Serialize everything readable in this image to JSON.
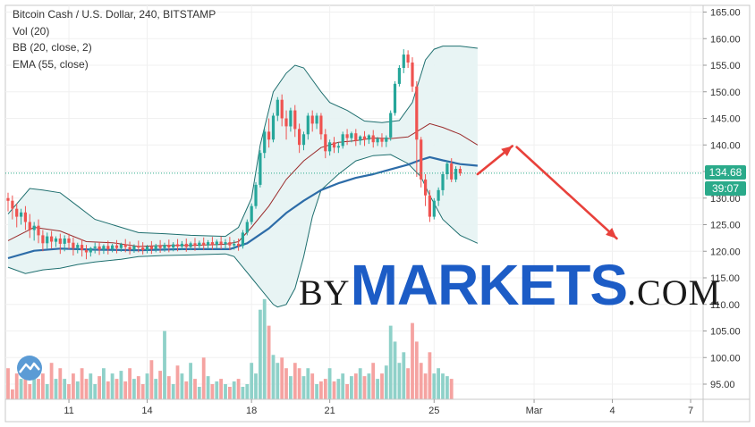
{
  "legend": {
    "line1": "Bitcoin Cash / U.S. Dollar, 240, BITSTAMP",
    "line2": "Vol (20)",
    "line3": "BB (20, close, 2)",
    "line4": "EMA (55, close)"
  },
  "watermark": {
    "by": "BY",
    "markets": "MARKETS",
    "com": ".COM"
  },
  "last_price_label": "134.68",
  "countdown_label": "39:07",
  "colors": {
    "up": "#26a69a",
    "down": "#ef5350",
    "ema": "#2d6ca8",
    "bb_fill": "#e6f3f3",
    "arrow": "#e8413b"
  },
  "chart_data": {
    "type": "candlestick",
    "title": "Bitcoin Cash / U.S. Dollar, 240, BITSTAMP",
    "indicators": [
      "Vol (20)",
      "BB (20, close, 2)",
      "EMA (55, close)"
    ],
    "y_ticks": [
      165,
      160,
      155,
      150,
      145,
      140,
      135,
      130,
      125,
      120,
      115,
      110,
      105,
      100,
      95
    ],
    "ylim": [
      92.5,
      166
    ],
    "x_ticks": [
      {
        "label": "11",
        "bar": 14
      },
      {
        "label": "14",
        "bar": 32
      },
      {
        "label": "18",
        "bar": 56
      },
      {
        "label": "21",
        "bar": 74
      },
      {
        "label": "25",
        "bar": 98
      },
      {
        "label": "Mar",
        "bar": 121
      },
      {
        "label": "4",
        "bar": 139
      },
      {
        "label": "7",
        "bar": 157
      }
    ],
    "last_price": 134.68,
    "candles": [
      {
        "o": 130,
        "h": 131,
        "c": 129.5,
        "l": 127.5
      },
      {
        "o": 129.5,
        "h": 130.5,
        "c": 128,
        "l": 126
      },
      {
        "o": 128,
        "h": 129,
        "c": 126.5,
        "l": 124.5
      },
      {
        "o": 126.5,
        "h": 128,
        "c": 127.3,
        "l": 125
      },
      {
        "o": 127.3,
        "h": 128.5,
        "c": 125.5,
        "l": 124
      },
      {
        "o": 125.5,
        "h": 127,
        "c": 124,
        "l": 122.5
      },
      {
        "o": 124,
        "h": 125.5,
        "c": 124.8,
        "l": 122
      },
      {
        "o": 124.8,
        "h": 126,
        "c": 123,
        "l": 121.5
      },
      {
        "o": 123,
        "h": 124,
        "c": 121.5,
        "l": 120
      },
      {
        "o": 121.5,
        "h": 123.5,
        "c": 122.8,
        "l": 120.5
      },
      {
        "o": 122.8,
        "h": 123.8,
        "c": 121.8,
        "l": 120.5
      },
      {
        "o": 121.8,
        "h": 122.8,
        "c": 122.4,
        "l": 120.8
      },
      {
        "o": 122.4,
        "h": 123.3,
        "c": 121.4,
        "l": 119.5
      },
      {
        "o": 121.4,
        "h": 123,
        "c": 122.4,
        "l": 120
      },
      {
        "o": 122.4,
        "h": 123.3,
        "c": 121.6,
        "l": 120.4
      },
      {
        "o": 121.6,
        "h": 122.6,
        "c": 120.6,
        "l": 119.2
      },
      {
        "o": 120.6,
        "h": 121.6,
        "c": 121.2,
        "l": 119.6
      },
      {
        "o": 121.2,
        "h": 122.2,
        "c": 120.2,
        "l": 119
      },
      {
        "o": 120.2,
        "h": 121.2,
        "c": 119.8,
        "l": 118.5
      },
      {
        "o": 119.8,
        "h": 120.8,
        "c": 120.6,
        "l": 119
      },
      {
        "o": 120.6,
        "h": 121.6,
        "c": 120.9,
        "l": 119.6
      },
      {
        "o": 120.9,
        "h": 121.8,
        "c": 120.3,
        "l": 119.3
      },
      {
        "o": 120.3,
        "h": 121.3,
        "c": 121,
        "l": 119.5
      },
      {
        "o": 121,
        "h": 122,
        "c": 120.4,
        "l": 119.4
      },
      {
        "o": 120.4,
        "h": 121.4,
        "c": 121.1,
        "l": 119.8
      },
      {
        "o": 121.1,
        "h": 122.1,
        "c": 120.6,
        "l": 119.6
      },
      {
        "o": 120.6,
        "h": 121.6,
        "c": 121.3,
        "l": 119.9
      },
      {
        "o": 121.3,
        "h": 122.3,
        "c": 120.8,
        "l": 119.8
      },
      {
        "o": 120.8,
        "h": 121.8,
        "c": 120.3,
        "l": 119.4
      },
      {
        "o": 120.3,
        "h": 121.3,
        "c": 121,
        "l": 119.7
      },
      {
        "o": 121,
        "h": 122,
        "c": 120.7,
        "l": 119.8
      },
      {
        "o": 120.7,
        "h": 121.7,
        "c": 120.2,
        "l": 119.4
      },
      {
        "o": 120.2,
        "h": 121.2,
        "c": 120.9,
        "l": 119.6
      },
      {
        "o": 120.9,
        "h": 121.9,
        "c": 120.4,
        "l": 119.5
      },
      {
        "o": 120.4,
        "h": 121.4,
        "c": 121.1,
        "l": 119.8
      },
      {
        "o": 121.1,
        "h": 122.1,
        "c": 120.6,
        "l": 119.7
      },
      {
        "o": 120.6,
        "h": 121.6,
        "c": 121.2,
        "l": 119.9
      },
      {
        "o": 121.2,
        "h": 122.2,
        "c": 120.7,
        "l": 119.8
      },
      {
        "o": 120.7,
        "h": 121.7,
        "c": 121.3,
        "l": 120
      },
      {
        "o": 121.3,
        "h": 122.3,
        "c": 120.9,
        "l": 120
      },
      {
        "o": 120.9,
        "h": 121.9,
        "c": 121.4,
        "l": 120.2
      },
      {
        "o": 121.4,
        "h": 122.4,
        "c": 120.8,
        "l": 119.9
      },
      {
        "o": 120.8,
        "h": 121.8,
        "c": 121.5,
        "l": 120.2
      },
      {
        "o": 121.5,
        "h": 122.5,
        "c": 121,
        "l": 120.1
      },
      {
        "o": 121,
        "h": 122,
        "c": 121.6,
        "l": 120.3
      },
      {
        "o": 121.6,
        "h": 122.6,
        "c": 121.1,
        "l": 120.2
      },
      {
        "o": 121.1,
        "h": 122.1,
        "c": 121.7,
        "l": 120.4
      },
      {
        "o": 121.7,
        "h": 122.7,
        "c": 121.2,
        "l": 120.3
      },
      {
        "o": 121.2,
        "h": 122.2,
        "c": 121.8,
        "l": 120.5
      },
      {
        "o": 121.8,
        "h": 122.8,
        "c": 121.3,
        "l": 120.4
      },
      {
        "o": 121.3,
        "h": 122.3,
        "c": 121.7,
        "l": 120.4
      },
      {
        "o": 121.7,
        "h": 122.7,
        "c": 121.1,
        "l": 120.2
      },
      {
        "o": 121.1,
        "h": 122.1,
        "c": 121.4,
        "l": 120.3
      },
      {
        "o": 121.4,
        "h": 122.4,
        "c": 121,
        "l": 120.1
      },
      {
        "o": 121,
        "h": 124,
        "c": 123.5,
        "l": 120.5
      },
      {
        "o": 123.5,
        "h": 126,
        "c": 125.5,
        "l": 123
      },
      {
        "o": 125.5,
        "h": 129,
        "c": 128.5,
        "l": 125
      },
      {
        "o": 128.5,
        "h": 133,
        "c": 132.5,
        "l": 128
      },
      {
        "o": 132.5,
        "h": 139,
        "c": 138.5,
        "l": 132
      },
      {
        "o": 138.5,
        "h": 143,
        "c": 142.5,
        "l": 137.5
      },
      {
        "o": 142.5,
        "h": 145,
        "c": 141,
        "l": 139.5
      },
      {
        "o": 141,
        "h": 146,
        "c": 145.5,
        "l": 140.5
      },
      {
        "o": 145.5,
        "h": 149,
        "c": 148.5,
        "l": 144.5
      },
      {
        "o": 148.5,
        "h": 149.5,
        "c": 145,
        "l": 143.5
      },
      {
        "o": 145,
        "h": 146.5,
        "c": 143.5,
        "l": 141
      },
      {
        "o": 143.5,
        "h": 147,
        "c": 146.5,
        "l": 142.5
      },
      {
        "o": 146.5,
        "h": 147.5,
        "c": 143,
        "l": 141.5
      },
      {
        "o": 143,
        "h": 144,
        "c": 140,
        "l": 138.5
      },
      {
        "o": 140,
        "h": 142.5,
        "c": 142,
        "l": 139
      },
      {
        "o": 142,
        "h": 146,
        "c": 145.5,
        "l": 141
      },
      {
        "o": 145.5,
        "h": 146.5,
        "c": 144,
        "l": 142.5
      },
      {
        "o": 144,
        "h": 146,
        "c": 145.5,
        "l": 143
      },
      {
        "o": 145.5,
        "h": 146,
        "c": 142,
        "l": 141
      },
      {
        "o": 142,
        "h": 143,
        "c": 138.8,
        "l": 137.5
      },
      {
        "o": 138.8,
        "h": 141,
        "c": 140.5,
        "l": 138
      },
      {
        "o": 140.5,
        "h": 141.5,
        "c": 139.5,
        "l": 138.5
      },
      {
        "o": 139.5,
        "h": 140.5,
        "c": 139.8,
        "l": 138.5
      },
      {
        "o": 139.8,
        "h": 142.5,
        "c": 142,
        "l": 139.3
      },
      {
        "o": 142,
        "h": 143,
        "c": 141.3,
        "l": 140
      },
      {
        "o": 141.3,
        "h": 142.5,
        "c": 142.2,
        "l": 140.5
      },
      {
        "o": 142.2,
        "h": 143,
        "c": 140.8,
        "l": 139.8
      },
      {
        "o": 140.8,
        "h": 141.8,
        "c": 141.6,
        "l": 140
      },
      {
        "o": 141.6,
        "h": 142.6,
        "c": 141,
        "l": 139.8
      },
      {
        "o": 141,
        "h": 142,
        "c": 141.8,
        "l": 140.2
      },
      {
        "o": 141.8,
        "h": 142.8,
        "c": 140.5,
        "l": 139.5
      },
      {
        "o": 140.5,
        "h": 141.5,
        "c": 141.2,
        "l": 139.8
      },
      {
        "o": 141.2,
        "h": 142.2,
        "c": 140.6,
        "l": 139.6
      },
      {
        "o": 140.6,
        "h": 141.8,
        "c": 141.4,
        "l": 139.6
      },
      {
        "o": 141.4,
        "h": 146.5,
        "c": 146,
        "l": 140.8
      },
      {
        "o": 146,
        "h": 152,
        "c": 151.5,
        "l": 145.5
      },
      {
        "o": 151.5,
        "h": 155,
        "c": 154.5,
        "l": 151
      },
      {
        "o": 154.5,
        "h": 158,
        "c": 157,
        "l": 153.5
      },
      {
        "o": 157,
        "h": 157.8,
        "c": 155.5,
        "l": 154.5
      },
      {
        "o": 155.5,
        "h": 156.5,
        "c": 151,
        "l": 150
      },
      {
        "o": 151,
        "h": 152,
        "c": 141,
        "l": 134
      },
      {
        "o": 141,
        "h": 141.5,
        "c": 133.5,
        "l": 132
      },
      {
        "o": 133.5,
        "h": 134.5,
        "c": 130.5,
        "l": 128.5
      },
      {
        "o": 130.5,
        "h": 131.5,
        "c": 126.5,
        "l": 125.5
      },
      {
        "o": 126.5,
        "h": 130,
        "c": 129.5,
        "l": 126
      },
      {
        "o": 129.5,
        "h": 132,
        "c": 131.5,
        "l": 128.5
      },
      {
        "o": 131.5,
        "h": 135,
        "c": 134.5,
        "l": 130.5
      },
      {
        "o": 134.5,
        "h": 137,
        "c": 136.5,
        "l": 133.5
      },
      {
        "o": 136.5,
        "h": 137.5,
        "c": 133.5,
        "l": 133
      },
      {
        "o": 133.5,
        "h": 136,
        "c": 135.5,
        "l": 133
      },
      {
        "o": 135.5,
        "h": 136,
        "c": 134.68,
        "l": 134.2
      }
    ],
    "volumes": [
      98,
      94,
      97,
      96,
      99,
      95,
      98,
      96,
      97,
      95,
      99,
      96,
      98,
      96,
      95,
      97,
      95.5,
      98,
      96,
      97,
      95,
      96.5,
      98,
      95.5,
      97,
      96,
      97.5,
      95.5,
      98,
      96,
      96.5,
      95,
      97,
      99.5,
      96,
      97.5,
      105,
      96.5,
      95,
      98.5,
      97,
      95.5,
      99,
      96,
      94.5,
      100,
      96.5,
      95,
      95.5,
      96,
      95,
      94.5,
      95.5,
      96,
      94.5,
      95,
      99,
      97,
      109,
      111,
      106,
      100.5,
      99,
      100,
      98,
      96.5,
      99,
      98,
      96.5,
      98,
      97,
      95,
      95.5,
      96,
      98,
      95.5,
      96,
      97,
      95,
      96.5,
      97,
      98,
      96.5,
      97,
      99,
      96,
      97,
      98.5,
      106,
      103,
      99,
      101,
      98,
      106.5,
      103,
      99,
      97,
      101,
      97,
      98,
      97,
      96.5,
      96
    ],
    "ema55": [
      [
        0,
        118.7
      ],
      [
        6,
        120.1
      ],
      [
        12,
        120.5
      ],
      [
        20,
        120.3
      ],
      [
        30,
        120.2
      ],
      [
        40,
        120.4
      ],
      [
        51,
        120.4
      ],
      [
        55,
        121.5
      ],
      [
        60,
        124.3
      ],
      [
        64,
        127.2
      ],
      [
        68,
        129.5
      ],
      [
        72,
        131.5
      ],
      [
        76,
        132.8
      ],
      [
        80,
        133.8
      ],
      [
        84,
        134.5
      ],
      [
        88,
        135.4
      ],
      [
        92,
        136.3
      ],
      [
        95,
        137.2
      ],
      [
        97,
        137.7
      ],
      [
        100,
        137.1
      ],
      [
        104,
        136.4
      ],
      [
        108,
        136.1
      ]
    ],
    "bb_basis": [
      [
        0,
        122
      ],
      [
        6,
        124.5
      ],
      [
        12,
        123.8
      ],
      [
        18,
        121.8
      ],
      [
        24,
        121.6
      ],
      [
        30,
        120.9
      ],
      [
        36,
        121.1
      ],
      [
        42,
        121.1
      ],
      [
        50,
        121.3
      ],
      [
        53,
        121.8
      ],
      [
        56,
        124.5
      ],
      [
        60,
        128.5
      ],
      [
        64,
        133.5
      ],
      [
        68,
        137
      ],
      [
        72,
        139.5
      ],
      [
        76,
        140.5
      ],
      [
        80,
        140.8
      ],
      [
        84,
        141.3
      ],
      [
        88,
        141.2
      ],
      [
        92,
        141.5
      ],
      [
        95,
        143
      ],
      [
        97,
        144
      ],
      [
        100,
        143.3
      ],
      [
        104,
        142
      ],
      [
        108,
        140
      ]
    ],
    "bb_upper": [
      [
        0,
        127
      ],
      [
        5,
        131.8
      ],
      [
        8,
        131.5
      ],
      [
        12,
        131
      ],
      [
        16,
        128.5
      ],
      [
        20,
        126
      ],
      [
        26,
        124.5
      ],
      [
        30,
        123.5
      ],
      [
        36,
        123.3
      ],
      [
        42,
        123
      ],
      [
        50,
        122.8
      ],
      [
        53,
        124.5
      ],
      [
        56,
        130
      ],
      [
        58,
        140
      ],
      [
        61,
        150
      ],
      [
        64,
        153.5
      ],
      [
        66,
        155
      ],
      [
        68,
        154.5
      ],
      [
        72,
        150
      ],
      [
        74,
        148
      ],
      [
        78,
        146.5
      ],
      [
        82,
        144.5
      ],
      [
        86,
        144.2
      ],
      [
        90,
        144.6
      ],
      [
        93,
        148
      ],
      [
        96,
        156
      ],
      [
        98,
        158
      ],
      [
        100,
        158.6
      ],
      [
        104,
        158.6
      ],
      [
        108,
        158.2
      ]
    ],
    "bb_lower": [
      [
        0,
        117
      ],
      [
        4,
        115.8
      ],
      [
        8,
        116.5
      ],
      [
        12,
        116.8
      ],
      [
        16,
        117.5
      ],
      [
        20,
        118
      ],
      [
        26,
        118.5
      ],
      [
        30,
        119
      ],
      [
        36,
        119.2
      ],
      [
        42,
        119.3
      ],
      [
        50,
        119.5
      ],
      [
        52,
        119
      ],
      [
        54,
        117
      ],
      [
        56,
        115
      ],
      [
        58,
        113
      ],
      [
        61,
        110
      ],
      [
        62,
        109.5
      ],
      [
        64,
        110
      ],
      [
        66,
        113
      ],
      [
        68,
        119
      ],
      [
        70,
        126.5
      ],
      [
        72,
        131.5
      ],
      [
        76,
        134.5
      ],
      [
        80,
        137
      ],
      [
        84,
        138
      ],
      [
        88,
        138.2
      ],
      [
        92,
        136.5
      ],
      [
        95,
        134
      ],
      [
        97,
        130.5
      ],
      [
        100,
        126
      ],
      [
        104,
        123
      ],
      [
        108,
        121.5
      ]
    ],
    "arrows": [
      {
        "from": [
          108,
          134.5
        ],
        "to": [
          116,
          139.8
        ]
      },
      {
        "from": [
          117,
          139.6
        ],
        "to": [
          140,
          122.4
        ]
      }
    ]
  }
}
